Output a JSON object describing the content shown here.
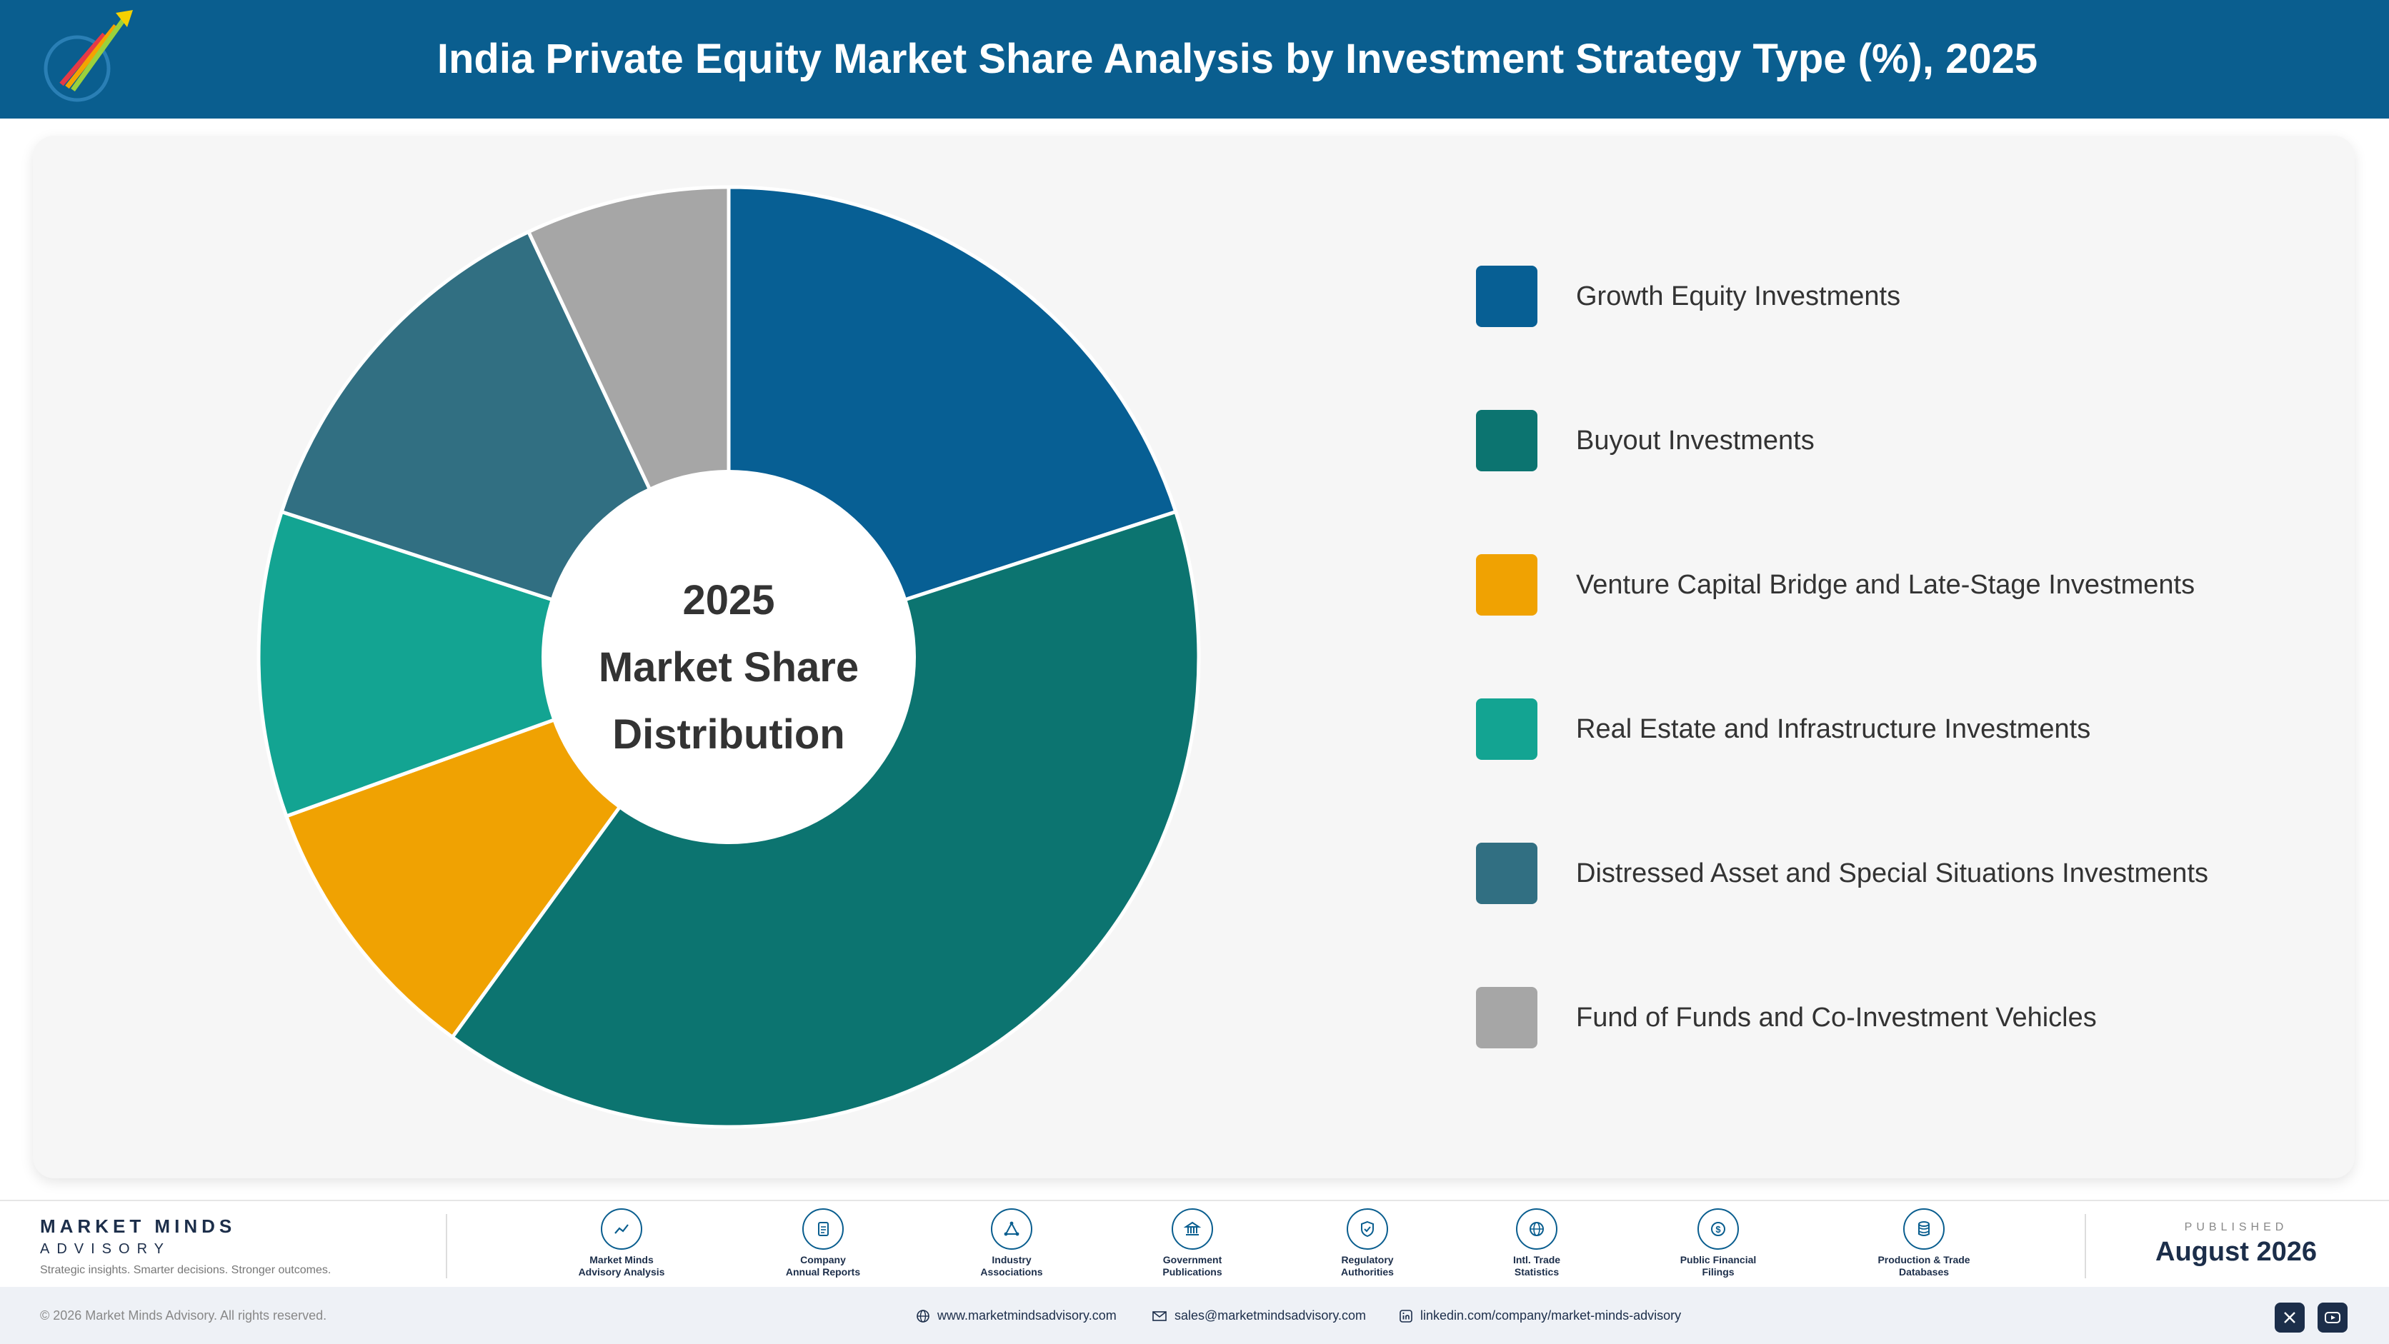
{
  "header": {
    "title": "India Private Equity Market Share Analysis by Investment Strategy Type (%), 2025",
    "logo_icon": "rocket-logo-icon"
  },
  "chart_data": {
    "type": "pie",
    "title": "India Private Equity Market Share Analysis by Investment Strategy Type (%), 2025",
    "center_text": [
      "2025",
      "Market Share",
      "Distribution"
    ],
    "categories": [
      "Growth Equity Investments",
      "Buyout Investments",
      "Venture Capital Bridge and Late-Stage Investments",
      "Real Estate and Infrastructure Investments",
      "Distressed Asset and Special Situations Investments",
      "Fund of Funds and Co-Investment Vehicles"
    ],
    "values": [
      20.0,
      40.0,
      9.5,
      10.5,
      13.0,
      7.0
    ],
    "colors": [
      "#075f94",
      "#0c7470",
      "#f0a202",
      "#13a492",
      "#316f82",
      "#a6a6a6"
    ],
    "legend_position": "right"
  },
  "footer": {
    "brand_name": "MARKET MINDS",
    "brand_sub": "ADVISORY",
    "brand_tagline": "Strategic insights. Smarter decisions. Stronger outcomes.",
    "sources": [
      {
        "line1": "Market Minds",
        "line2": "Advisory Analysis",
        "icon": "trend-chart-icon"
      },
      {
        "line1": "Company",
        "line2": "Annual Reports",
        "icon": "document-icon"
      },
      {
        "line1": "Industry",
        "line2": "Associations",
        "icon": "network-icon"
      },
      {
        "line1": "Government",
        "line2": "Publications",
        "icon": "government-building-icon"
      },
      {
        "line1": "Regulatory",
        "line2": "Authorities",
        "icon": "shield-check-icon"
      },
      {
        "line1": "Intl. Trade",
        "line2": "Statistics",
        "icon": "globe-icon"
      },
      {
        "line1": "Public Financial",
        "line2": "Filings",
        "icon": "dollar-coin-icon"
      },
      {
        "line1": "Production & Trade",
        "line2": "Databases",
        "icon": "database-icon"
      }
    ],
    "published_label": "PUBLISHED",
    "published_date": "August 2026"
  },
  "bottom_bar": {
    "copyright": "© 2026 Market Minds Advisory. All rights reserved.",
    "website": "www.marketmindsadvisory.com",
    "email": "sales@marketmindsadvisory.com",
    "linkedin": "linkedin.com/company/market-minds-advisory",
    "social_icons": [
      "x-icon",
      "youtube-icon"
    ]
  }
}
